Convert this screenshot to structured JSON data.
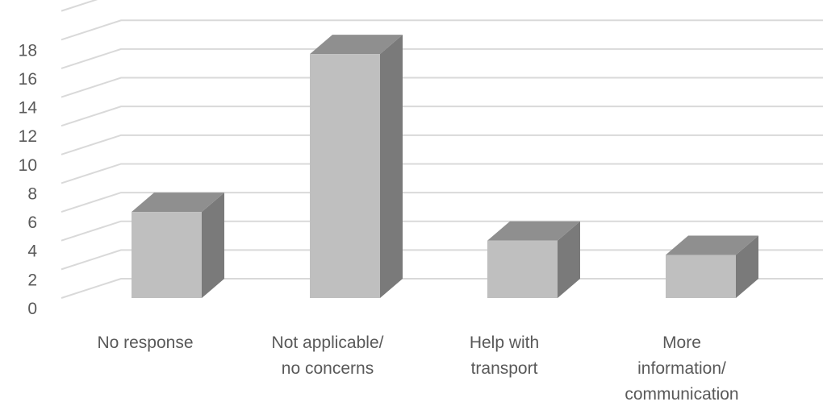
{
  "chart_data": {
    "type": "bar",
    "style": "3d-column",
    "categories": [
      [
        "No response"
      ],
      [
        "Not applicable/",
        "no concerns"
      ],
      [
        "Help with",
        "transport"
      ],
      [
        "More",
        "information/",
        "communication"
      ]
    ],
    "values": [
      6,
      17,
      4,
      3
    ],
    "ylim": [
      0,
      20
    ],
    "yticks": [
      0,
      2,
      4,
      6,
      8,
      10,
      12,
      14,
      16,
      18
    ],
    "grid": true,
    "legend": "none",
    "colors": {
      "front": "#bfbfbf",
      "top": "#8f8f8f",
      "side": "#7a7a7a",
      "grid": "#d9d9d9",
      "text": "#595959"
    }
  }
}
